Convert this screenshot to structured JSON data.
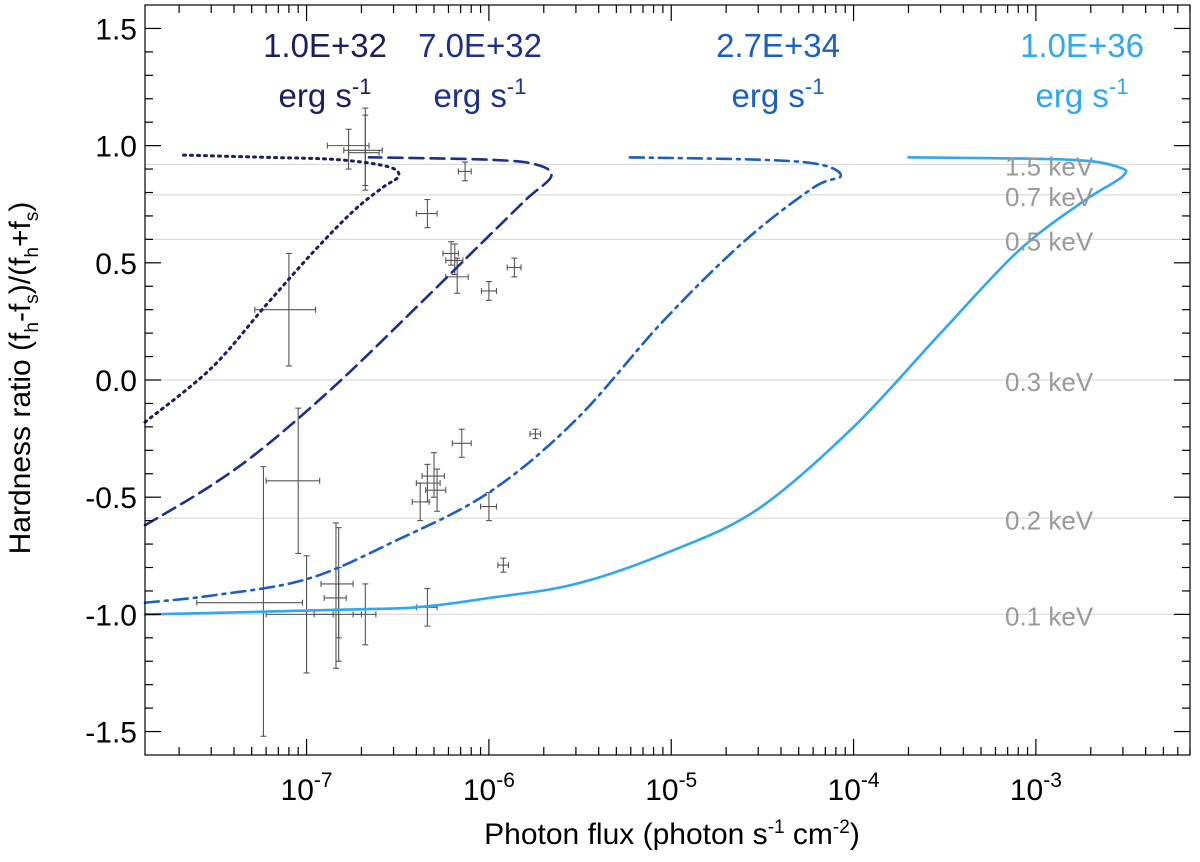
{
  "chart_data": {
    "type": "line",
    "title": "",
    "xlabel": {
      "pre": "Photon flux (photon s",
      "sup1": "-1",
      "mid": " cm",
      "sup2": "-2",
      "post": ")"
    },
    "ylabel": {
      "pre": "Hardness ratio (f",
      "s1": "h",
      "a": "-f",
      "s2": "s",
      "b": ")/(f",
      "s3": "h",
      "c": "+f",
      "s4": "s",
      "d": ")"
    },
    "x_scale": "log",
    "xlim": [
      1.3e-08,
      0.007
    ],
    "ylim": [
      -1.6,
      1.6
    ],
    "x_tick_labels": [
      {
        "value": 1e-07,
        "base": "10",
        "exp": "-7"
      },
      {
        "value": 1e-06,
        "base": "10",
        "exp": "-6"
      },
      {
        "value": 1e-05,
        "base": "10",
        "exp": "-5"
      },
      {
        "value": 0.0001,
        "base": "10",
        "exp": "-4"
      },
      {
        "value": 0.001,
        "base": "10",
        "exp": "-3"
      }
    ],
    "y_ticks": [
      {
        "value": 1.5,
        "label": "1.5"
      },
      {
        "value": 1.0,
        "label": "1.0"
      },
      {
        "value": 0.5,
        "label": "0.5"
      },
      {
        "value": 0.0,
        "label": "0.0"
      },
      {
        "value": -0.5,
        "label": "-0.5"
      },
      {
        "value": -1.0,
        "label": "-1.0"
      },
      {
        "value": -1.5,
        "label": "-1.5"
      }
    ],
    "grid": false,
    "temperature_lines": [
      {
        "label": "1.5 keV",
        "y": 0.92
      },
      {
        "label": "0.7 keV",
        "y": 0.79
      },
      {
        "label": "0.5 keV",
        "y": 0.6
      },
      {
        "label": "0.3 keV",
        "y": 0.0
      },
      {
        "label": "0.2 keV",
        "y": -0.59
      },
      {
        "label": "0.1 keV",
        "y": -1.0
      }
    ],
    "series": [
      {
        "luminosity": "1.0E+32",
        "unit_base": "erg s",
        "unit_exp": "-1",
        "color": "#1a1f5e",
        "style": "dotted",
        "points": [
          [
            1.3e-08,
            -0.18
          ],
          [
            3e-08,
            0.05
          ],
          [
            6e-08,
            0.32
          ],
          [
            1.1e-07,
            0.55
          ],
          [
            1.8e-07,
            0.72
          ],
          [
            2.6e-07,
            0.82
          ],
          [
            3.2e-07,
            0.87
          ],
          [
            2.8e-07,
            0.91
          ],
          [
            1.5e-07,
            0.94
          ],
          [
            6e-08,
            0.95
          ],
          [
            2e-08,
            0.96
          ]
        ]
      },
      {
        "luminosity": "7.0E+32",
        "unit_base": "erg s",
        "unit_exp": "-1",
        "color": "#1c2f8f",
        "style": "dashed",
        "points": [
          [
            1.3e-08,
            -0.62
          ],
          [
            3e-08,
            -0.45
          ],
          [
            6e-08,
            -0.28
          ],
          [
            1.5e-07,
            -0.01
          ],
          [
            4e-07,
            0.31
          ],
          [
            9e-07,
            0.58
          ],
          [
            1.6e-06,
            0.77
          ],
          [
            2.2e-06,
            0.87
          ],
          [
            1.8e-06,
            0.92
          ],
          [
            1e-06,
            0.94
          ],
          [
            2.2e-07,
            0.95
          ]
        ]
      },
      {
        "luminosity": "2.7E+34",
        "unit_base": "erg s",
        "unit_exp": "-1",
        "color": "#1a5fc4",
        "style": "dashdot",
        "points": [
          [
            1.3e-08,
            -0.95
          ],
          [
            3e-08,
            -0.92
          ],
          [
            1e-07,
            -0.85
          ],
          [
            3e-07,
            -0.69
          ],
          [
            1e-06,
            -0.48
          ],
          [
            3e-06,
            -0.17
          ],
          [
            9e-06,
            0.25
          ],
          [
            2.5e-05,
            0.59
          ],
          [
            6e-05,
            0.82
          ],
          [
            8.5e-05,
            0.87
          ],
          [
            6.5e-05,
            0.92
          ],
          [
            3e-05,
            0.94
          ],
          [
            5.5e-06,
            0.95
          ]
        ]
      },
      {
        "luminosity": "1.0E+36",
        "unit_base": "erg s",
        "unit_exp": "-1",
        "color": "#2ea8ee",
        "style": "solid",
        "points": [
          [
            1.3e-08,
            -1.0
          ],
          [
            5e-08,
            -0.99
          ],
          [
            1.5e-07,
            -0.98
          ],
          [
            4e-07,
            -0.97
          ],
          [
            1e-06,
            -0.93
          ],
          [
            3e-06,
            -0.87
          ],
          [
            1e-05,
            -0.73
          ],
          [
            3e-05,
            -0.55
          ],
          [
            0.0001,
            -0.2
          ],
          [
            0.0003,
            0.2
          ],
          [
            0.0008,
            0.55
          ],
          [
            0.0018,
            0.76
          ],
          [
            0.003,
            0.87
          ],
          [
            0.0028,
            0.91
          ],
          [
            0.0015,
            0.94
          ],
          [
            0.0002,
            0.95
          ]
        ]
      }
    ],
    "observations": [
      {
        "x": 2.1e-07,
        "xlo": 1.6e-07,
        "xhi": 2.6e-07,
        "y": 0.98,
        "ylo": 0.83,
        "yhi": 1.13
      },
      {
        "x": 2.1e-07,
        "xlo": 1.7e-07,
        "xhi": 2.5e-07,
        "y": 0.97,
        "ylo": 0.81,
        "yhi": 1.16
      },
      {
        "x": 1.7e-07,
        "xlo": 1.3e-07,
        "xhi": 2.2e-07,
        "y": 1.0,
        "ylo": 0.9,
        "yhi": 1.07
      },
      {
        "x": 7.4e-07,
        "xlo": 6.8e-07,
        "xhi": 8e-07,
        "y": 0.89,
        "ylo": 0.85,
        "yhi": 0.93
      },
      {
        "x": 4.6e-07,
        "xlo": 4e-07,
        "xhi": 5.2e-07,
        "y": 0.71,
        "ylo": 0.65,
        "yhi": 0.77
      },
      {
        "x": 6.2e-07,
        "xlo": 5.6e-07,
        "xhi": 6.8e-07,
        "y": 0.54,
        "ylo": 0.49,
        "yhi": 0.59
      },
      {
        "x": 6.5e-07,
        "xlo": 5.8e-07,
        "xhi": 7.2e-07,
        "y": 0.51,
        "ylo": 0.45,
        "yhi": 0.58
      },
      {
        "x": 6.7e-07,
        "xlo": 5.8e-07,
        "xhi": 7.7e-07,
        "y": 0.44,
        "ylo": 0.37,
        "yhi": 0.52
      },
      {
        "x": 1.38e-06,
        "xlo": 1.26e-06,
        "xhi": 1.5e-06,
        "y": 0.48,
        "ylo": 0.44,
        "yhi": 0.52
      },
      {
        "x": 1e-06,
        "xlo": 9.1e-07,
        "xhi": 1.1e-06,
        "y": 0.38,
        "ylo": 0.34,
        "yhi": 0.42
      },
      {
        "x": 8e-08,
        "xlo": 5.2e-08,
        "xhi": 1.12e-07,
        "y": 0.3,
        "ylo": 0.06,
        "yhi": 0.54
      },
      {
        "x": 7.1e-07,
        "xlo": 6.3e-07,
        "xhi": 8e-07,
        "y": -0.27,
        "ylo": -0.33,
        "yhi": -0.21
      },
      {
        "x": 1.8e-06,
        "xlo": 1.68e-06,
        "xhi": 1.92e-06,
        "y": -0.23,
        "ylo": -0.25,
        "yhi": -0.21
      },
      {
        "x": 4.2e-07,
        "xlo": 3.8e-07,
        "xhi": 4.7e-07,
        "y": -0.52,
        "ylo": -0.6,
        "yhi": -0.44
      },
      {
        "x": 4.6e-07,
        "xlo": 4e-07,
        "xhi": 5.4e-07,
        "y": -0.44,
        "ylo": -0.52,
        "yhi": -0.36
      },
      {
        "x": 5e-07,
        "xlo": 4.3e-07,
        "xhi": 5.7e-07,
        "y": -0.41,
        "ylo": -0.5,
        "yhi": -0.31
      },
      {
        "x": 5.2e-07,
        "xlo": 4.5e-07,
        "xhi": 5.8e-07,
        "y": -0.47,
        "ylo": -0.56,
        "yhi": -0.38
      },
      {
        "x": 1e-06,
        "xlo": 9e-07,
        "xhi": 1.1e-06,
        "y": -0.54,
        "ylo": -0.6,
        "yhi": -0.48
      },
      {
        "x": 1.2e-06,
        "xlo": 1.12e-06,
        "xhi": 1.28e-06,
        "y": -0.79,
        "ylo": -0.82,
        "yhi": -0.76
      },
      {
        "x": 9e-08,
        "xlo": 6e-08,
        "xhi": 1.18e-07,
        "y": -0.43,
        "ylo": -0.74,
        "yhi": -0.12
      },
      {
        "x": 1.5e-07,
        "xlo": 1.2e-07,
        "xhi": 1.8e-07,
        "y": -0.87,
        "ylo": -1.1,
        "yhi": -0.63
      },
      {
        "x": 1.45e-07,
        "xlo": 1.25e-07,
        "xhi": 1.65e-07,
        "y": -0.93,
        "ylo": -1.23,
        "yhi": -0.61
      },
      {
        "x": 5.8e-08,
        "xlo": 2.5e-08,
        "xhi": 9.5e-08,
        "y": -0.95,
        "ylo": -1.52,
        "yhi": -0.37
      },
      {
        "x": 1e-07,
        "xlo": 6e-08,
        "xhi": 1.4e-07,
        "y": -1.0,
        "ylo": -1.25,
        "yhi": -0.75
      },
      {
        "x": 2.1e-07,
        "xlo": 1.8e-07,
        "xhi": 2.4e-07,
        "y": -1.0,
        "ylo": -1.13,
        "yhi": -0.87
      },
      {
        "x": 1.5e-07,
        "xlo": 1.1e-07,
        "xhi": 2e-07,
        "y": -1.0,
        "ylo": -1.2,
        "yhi": -0.8
      },
      {
        "x": 4.6e-07,
        "xlo": 4e-07,
        "xhi": 5.2e-07,
        "y": -0.97,
        "ylo": -1.05,
        "yhi": -0.89
      }
    ]
  }
}
